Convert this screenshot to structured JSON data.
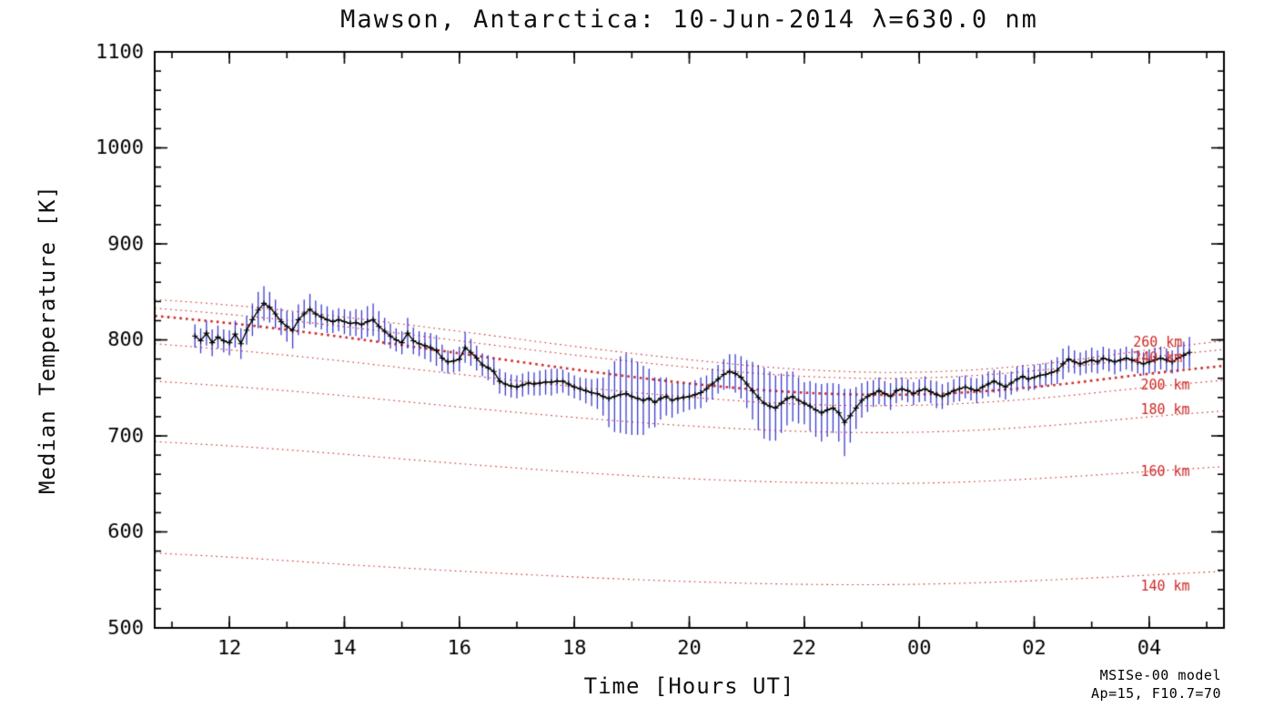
{
  "chart_data": {
    "type": "line",
    "title": "Mawson, Antarctica: 10-Jun-2014 λ=630.0 nm",
    "xlabel": "Time [Hours UT]",
    "ylabel": "Median Temperature [K]",
    "xlim": [
      10.7,
      29.3
    ],
    "ylim": [
      500,
      1100
    ],
    "xticks": [
      12,
      14,
      16,
      18,
      20,
      22,
      24,
      26,
      28
    ],
    "xtick_labels": [
      "12",
      "14",
      "16",
      "18",
      "20",
      "22",
      "00",
      "02",
      "04"
    ],
    "yticks": [
      500,
      600,
      700,
      800,
      900,
      1000,
      1100
    ],
    "ytick_labels": [
      "500",
      "600",
      "700",
      "800",
      "900",
      "1000",
      "1100"
    ],
    "x_minor_step": 1,
    "y_minor_step": 20,
    "grid": false,
    "colors": {
      "data_line": "#000000",
      "error_bar": "#3b3bcf",
      "model": "#cf2a27",
      "axis": "#000000"
    },
    "measured": {
      "name": "Median temperature with error bars",
      "points": [
        [
          11.4,
          804,
          12
        ],
        [
          11.5,
          799,
          13
        ],
        [
          11.6,
          807,
          13
        ],
        [
          11.7,
          797,
          14
        ],
        [
          11.8,
          803,
          12
        ],
        [
          11.9,
          799,
          12
        ],
        [
          12.0,
          797,
          13
        ],
        [
          12.1,
          806,
          14
        ],
        [
          12.2,
          796,
          16
        ],
        [
          12.3,
          810,
          15
        ],
        [
          12.4,
          821,
          17
        ],
        [
          12.5,
          831,
          19
        ],
        [
          12.6,
          838,
          18
        ],
        [
          12.7,
          834,
          16
        ],
        [
          12.8,
          827,
          15
        ],
        [
          12.9,
          819,
          14
        ],
        [
          13.0,
          814,
          16
        ],
        [
          13.1,
          810,
          19
        ],
        [
          13.2,
          821,
          16
        ],
        [
          13.3,
          827,
          15
        ],
        [
          13.4,
          832,
          16
        ],
        [
          13.5,
          827,
          14
        ],
        [
          13.6,
          824,
          13
        ],
        [
          13.7,
          821,
          14
        ],
        [
          13.8,
          819,
          12
        ],
        [
          13.9,
          821,
          12
        ],
        [
          14.0,
          819,
          13
        ],
        [
          14.1,
          817,
          13
        ],
        [
          14.2,
          818,
          14
        ],
        [
          14.3,
          816,
          15
        ],
        [
          14.4,
          819,
          16
        ],
        [
          14.5,
          821,
          17
        ],
        [
          14.6,
          814,
          16
        ],
        [
          14.7,
          809,
          14
        ],
        [
          14.8,
          804,
          13
        ],
        [
          14.9,
          800,
          12
        ],
        [
          15.0,
          797,
          12
        ],
        [
          15.1,
          807,
          16
        ],
        [
          15.2,
          799,
          14
        ],
        [
          15.3,
          796,
          13
        ],
        [
          15.4,
          794,
          14
        ],
        [
          15.5,
          792,
          15
        ],
        [
          15.6,
          789,
          16
        ],
        [
          15.7,
          781,
          14
        ],
        [
          15.8,
          777,
          12
        ],
        [
          15.9,
          778,
          12
        ],
        [
          16.0,
          780,
          13
        ],
        [
          16.1,
          792,
          16
        ],
        [
          16.2,
          787,
          14
        ],
        [
          16.3,
          781,
          13
        ],
        [
          16.4,
          774,
          12
        ],
        [
          16.5,
          771,
          13
        ],
        [
          16.6,
          767,
          14
        ],
        [
          16.7,
          757,
          13
        ],
        [
          16.8,
          754,
          12
        ],
        [
          16.9,
          752,
          12
        ],
        [
          17.0,
          751,
          12
        ],
        [
          17.1,
          753,
          12
        ],
        [
          17.2,
          755,
          12
        ],
        [
          17.3,
          754,
          12
        ],
        [
          17.4,
          755,
          13
        ],
        [
          17.5,
          756,
          13
        ],
        [
          17.6,
          756,
          14
        ],
        [
          17.7,
          757,
          13
        ],
        [
          17.8,
          757,
          12
        ],
        [
          17.9,
          754,
          12
        ],
        [
          18.0,
          751,
          12
        ],
        [
          18.1,
          749,
          12
        ],
        [
          18.2,
          747,
          13
        ],
        [
          18.3,
          745,
          14
        ],
        [
          18.4,
          744,
          16
        ],
        [
          18.5,
          741,
          20
        ],
        [
          18.6,
          739,
          30
        ],
        [
          18.7,
          741,
          37
        ],
        [
          18.8,
          743,
          40
        ],
        [
          18.9,
          744,
          42
        ],
        [
          19.0,
          741,
          40
        ],
        [
          19.1,
          739,
          38
        ],
        [
          19.2,
          737,
          36
        ],
        [
          19.3,
          739,
          31
        ],
        [
          19.4,
          735,
          26
        ],
        [
          19.5,
          739,
          22
        ],
        [
          19.6,
          741,
          20
        ],
        [
          19.7,
          737,
          18
        ],
        [
          19.8,
          739,
          16
        ],
        [
          19.9,
          740,
          15
        ],
        [
          20.0,
          741,
          14
        ],
        [
          20.1,
          743,
          15
        ],
        [
          20.2,
          745,
          16
        ],
        [
          20.3,
          749,
          14
        ],
        [
          20.4,
          754,
          16
        ],
        [
          20.5,
          759,
          15
        ],
        [
          20.6,
          764,
          16
        ],
        [
          20.7,
          767,
          18
        ],
        [
          20.8,
          765,
          20
        ],
        [
          20.9,
          761,
          22
        ],
        [
          21.0,
          754,
          25
        ],
        [
          21.1,
          747,
          30
        ],
        [
          21.2,
          740,
          34
        ],
        [
          21.3,
          734,
          37
        ],
        [
          21.4,
          731,
          36
        ],
        [
          21.5,
          729,
          34
        ],
        [
          21.6,
          734,
          31
        ],
        [
          21.7,
          739,
          28
        ],
        [
          21.8,
          741,
          26
        ],
        [
          21.9,
          737,
          24
        ],
        [
          22.0,
          734,
          22
        ],
        [
          22.1,
          731,
          26
        ],
        [
          22.2,
          727,
          28
        ],
        [
          22.3,
          724,
          30
        ],
        [
          22.4,
          727,
          28
        ],
        [
          22.5,
          729,
          26
        ],
        [
          22.6,
          724,
          30
        ],
        [
          22.7,
          714,
          35
        ],
        [
          22.8,
          721,
          28
        ],
        [
          22.9,
          729,
          22
        ],
        [
          23.0,
          737,
          18
        ],
        [
          23.1,
          741,
          16
        ],
        [
          23.2,
          744,
          14
        ],
        [
          23.3,
          747,
          14
        ],
        [
          23.4,
          744,
          13
        ],
        [
          23.5,
          741,
          14
        ],
        [
          23.6,
          747,
          13
        ],
        [
          23.7,
          749,
          12
        ],
        [
          23.8,
          747,
          12
        ],
        [
          23.9,
          744,
          12
        ],
        [
          24.0,
          747,
          12
        ],
        [
          24.1,
          749,
          13
        ],
        [
          24.2,
          746,
          12
        ],
        [
          24.3,
          743,
          14
        ],
        [
          24.4,
          741,
          13
        ],
        [
          24.5,
          744,
          12
        ],
        [
          24.6,
          747,
          12
        ],
        [
          24.7,
          749,
          13
        ],
        [
          24.8,
          751,
          12
        ],
        [
          24.9,
          749,
          12
        ],
        [
          25.0,
          747,
          13
        ],
        [
          25.1,
          751,
          12
        ],
        [
          25.2,
          754,
          13
        ],
        [
          25.3,
          757,
          12
        ],
        [
          25.4,
          754,
          14
        ],
        [
          25.5,
          751,
          13
        ],
        [
          25.6,
          755,
          12
        ],
        [
          25.7,
          759,
          13
        ],
        [
          25.8,
          762,
          12
        ],
        [
          25.9,
          759,
          12
        ],
        [
          26.0,
          761,
          13
        ],
        [
          26.1,
          763,
          12
        ],
        [
          26.2,
          764,
          12
        ],
        [
          26.3,
          766,
          13
        ],
        [
          26.4,
          768,
          14
        ],
        [
          26.5,
          775,
          16
        ],
        [
          26.6,
          780,
          14
        ],
        [
          26.7,
          777,
          12
        ],
        [
          26.8,
          775,
          12
        ],
        [
          26.9,
          777,
          12
        ],
        [
          27.0,
          779,
          13
        ],
        [
          27.1,
          777,
          12
        ],
        [
          27.2,
          781,
          12
        ],
        [
          27.3,
          779,
          12
        ],
        [
          27.4,
          777,
          13
        ],
        [
          27.5,
          779,
          12
        ],
        [
          27.6,
          781,
          12
        ],
        [
          27.7,
          779,
          12
        ],
        [
          27.8,
          777,
          12
        ],
        [
          27.9,
          775,
          12
        ],
        [
          28.0,
          777,
          12
        ],
        [
          28.1,
          779,
          13
        ],
        [
          28.2,
          781,
          12
        ],
        [
          28.3,
          779,
          12
        ],
        [
          28.4,
          777,
          12
        ],
        [
          28.5,
          781,
          14
        ],
        [
          28.6,
          784,
          14
        ],
        [
          28.7,
          787,
          16
        ]
      ]
    },
    "model_curves": {
      "x": [
        10.7,
        12,
        14,
        16,
        18,
        20,
        22,
        24,
        26,
        28,
        29.3
      ],
      "thick_curve": "220 km",
      "series": [
        {
          "name": "260 km",
          "values": [
            842,
            837,
            824,
            809,
            793,
            779,
            768,
            765,
            773,
            790,
            799
          ]
        },
        {
          "name": "240 km",
          "values": [
            833,
            827,
            814,
            799,
            784,
            771,
            761,
            759,
            767,
            782,
            790
          ]
        },
        {
          "name": "220 km",
          "values": [
            825,
            818,
            803,
            786,
            769,
            754,
            744,
            742,
            750,
            765,
            773
          ]
        },
        {
          "name": "200 km",
          "values": [
            796,
            790,
            778,
            764,
            751,
            740,
            732,
            731,
            738,
            751,
            758
          ]
        },
        {
          "name": "180 km",
          "values": [
            757,
            752,
            742,
            730,
            719,
            710,
            704,
            703,
            709,
            720,
            726
          ]
        },
        {
          "name": "160 km",
          "values": [
            694,
            690,
            681,
            671,
            662,
            655,
            651,
            650,
            655,
            663,
            668
          ]
        },
        {
          "name": "140 km",
          "values": [
            578,
            574,
            566,
            559,
            553,
            548,
            545,
            545,
            549,
            555,
            559
          ]
        }
      ]
    },
    "curve_labels": [
      {
        "label": "260 km",
        "t": 27.72,
        "T": 797
      },
      {
        "label": "240 km",
        "t": 27.72,
        "T": 780
      },
      {
        "label": "200 km",
        "t": 27.85,
        "T": 752
      },
      {
        "label": "180 km",
        "t": 27.85,
        "T": 726
      },
      {
        "label": "160 km",
        "t": 27.85,
        "T": 662
      },
      {
        "label": "140 km",
        "t": 27.85,
        "T": 543
      }
    ],
    "annotations": [
      "MSISe-00 model",
      "Ap=15, F10.7=70"
    ],
    "legend_position": "none"
  }
}
